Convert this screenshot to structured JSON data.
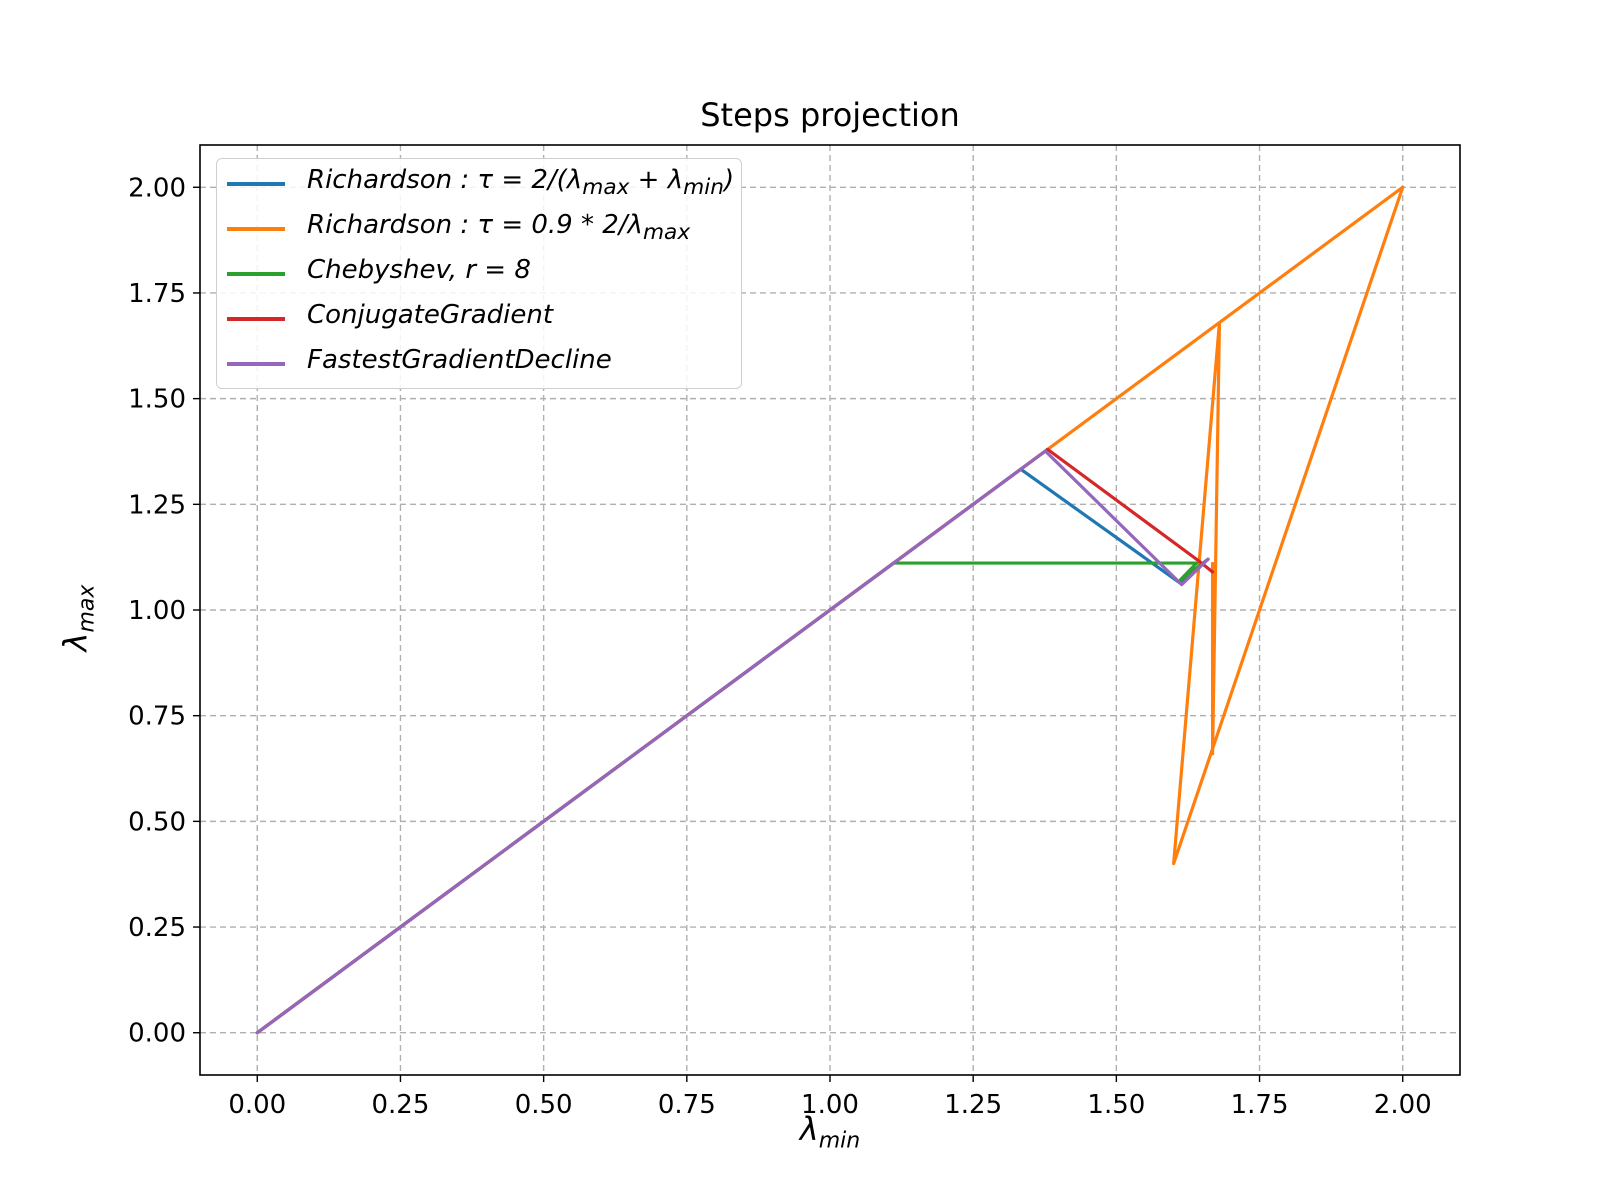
{
  "chart_data": {
    "type": "line",
    "title": "Steps projection",
    "xlabel": "λ",
    "xlabel_sub": "min",
    "ylabel": "λ",
    "ylabel_sub": "max",
    "xlim": [
      -0.1,
      2.1
    ],
    "ylim": [
      -0.1,
      2.1
    ],
    "xticks": [
      0.0,
      0.25,
      0.5,
      0.75,
      1.0,
      1.25,
      1.5,
      1.75,
      2.0
    ],
    "yticks": [
      0.0,
      0.25,
      0.5,
      0.75,
      1.0,
      1.25,
      1.5,
      1.75,
      2.0
    ],
    "xtick_labels": [
      "0.00",
      "0.25",
      "0.50",
      "0.75",
      "1.00",
      "1.25",
      "1.50",
      "1.75",
      "2.00"
    ],
    "ytick_labels": [
      "0.00",
      "0.25",
      "0.50",
      "0.75",
      "1.00",
      "1.25",
      "1.50",
      "1.75",
      "2.00"
    ],
    "grid": true,
    "grid_style": "dashed",
    "legend_position": "top-left",
    "series": [
      {
        "name": "Richardson : τ = 2/(λmax + λmin)",
        "legend": {
          "pre": "Richardson : τ = 2/(λ",
          "sub1": "max",
          "mid": " + λ",
          "sub2": "min",
          "post": ")"
        },
        "color": "#1f77b4",
        "points": [
          [
            0,
            0
          ],
          [
            1.333,
            1.333
          ],
          [
            1.61,
            1.065
          ],
          [
            1.66,
            1.12
          ]
        ]
      },
      {
        "name": "Richardson : τ = 0.9 * 2/λmax",
        "legend": {
          "pre": "Richardson : τ = 0.9 * 2/λ",
          "sub1": "max",
          "mid": "",
          "sub2": "",
          "post": ""
        },
        "color": "#ff7f0e",
        "points": [
          [
            0,
            0
          ],
          [
            2.0,
            2.0
          ],
          [
            1.6,
            0.4
          ],
          [
            1.68,
            1.68
          ],
          [
            1.668,
            0.66
          ],
          [
            1.668,
            1.11
          ]
        ]
      },
      {
        "name": "Chebyshev, r = 8",
        "legend": {
          "pre": "Chebyshev, r = 8",
          "sub1": "",
          "mid": "",
          "sub2": "",
          "post": ""
        },
        "color": "#2ca02c",
        "points": [
          [
            0,
            0
          ],
          [
            1.111,
            1.111
          ],
          [
            1.64,
            1.111
          ],
          [
            1.611,
            1.07
          ],
          [
            1.66,
            1.12
          ]
        ]
      },
      {
        "name": "ConjugateGradient",
        "legend": {
          "pre": "ConjugateGradient",
          "sub1": "",
          "mid": "",
          "sub2": "",
          "post": ""
        },
        "color": "#d62728",
        "points": [
          [
            0,
            0
          ],
          [
            1.38,
            1.38
          ],
          [
            1.645,
            1.115
          ],
          [
            1.668,
            1.09
          ]
        ]
      },
      {
        "name": "FastestGradientDecline",
        "legend": {
          "pre": "FastestGradientDecline",
          "sub1": "",
          "mid": "",
          "sub2": "",
          "post": ""
        },
        "color": "#9467bd",
        "points": [
          [
            0,
            0
          ],
          [
            1.376,
            1.376
          ],
          [
            1.614,
            1.06
          ],
          [
            1.66,
            1.12
          ]
        ]
      }
    ]
  }
}
